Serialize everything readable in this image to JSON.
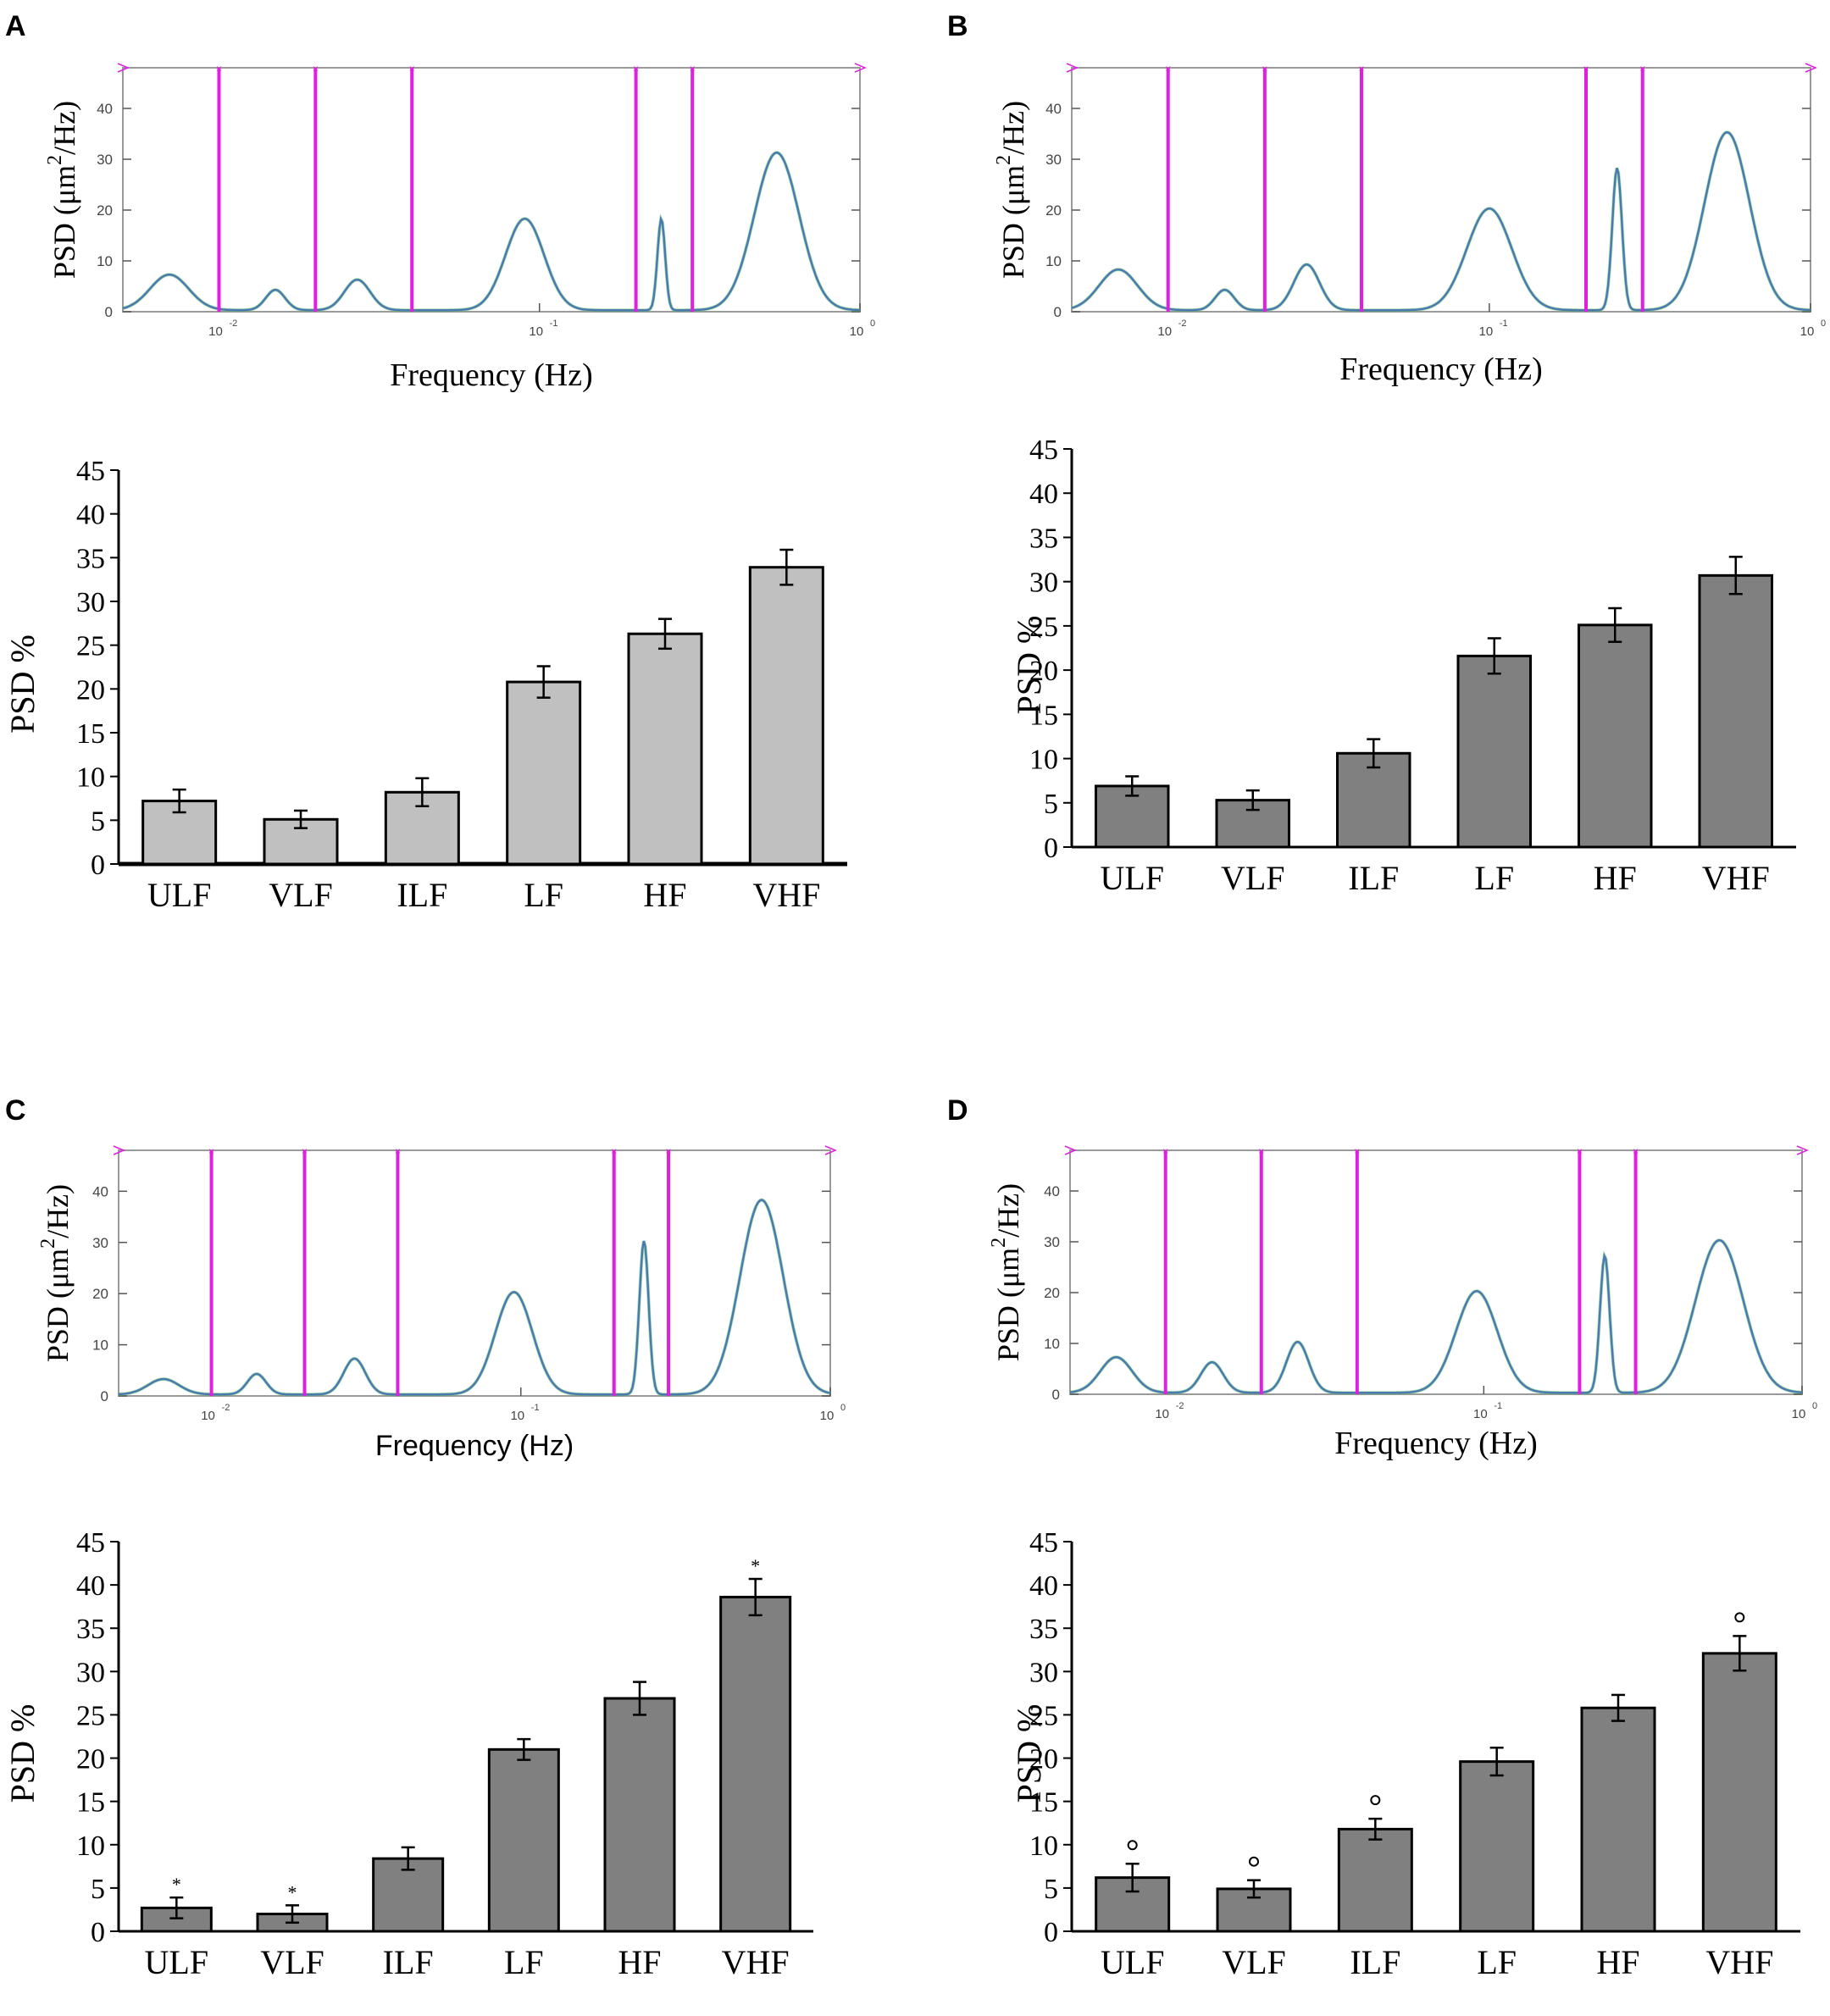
{
  "panels": [
    {
      "letter": "A",
      "spectrum": {
        "ylabel_main": "PSD (μm",
        "ylabel_sup": "2",
        "ylabel_tail": "/Hz)",
        "xlabel": "Frequency (Hz)",
        "xlabel_font": "serif",
        "xtick_labels": [
          "10",
          "10",
          "10"
        ],
        "xtick_exps": [
          "-2",
          "-1",
          "0"
        ],
        "yticks": [
          0,
          10,
          20,
          30,
          40
        ],
        "ylim": [
          0,
          48
        ],
        "xlim_log": [
          -2.3,
          0
        ],
        "band_edges_hz": [
          0.01,
          0.02,
          0.04,
          0.2,
          0.3
        ],
        "peaks": [
          {
            "f": 0.007,
            "h": 7,
            "w": 0.06
          },
          {
            "f": 0.015,
            "h": 4,
            "w": 0.03
          },
          {
            "f": 0.027,
            "h": 6,
            "w": 0.04
          },
          {
            "f": 0.09,
            "h": 18,
            "w": 0.06
          },
          {
            "f": 0.24,
            "h": 18,
            "w": 0.012
          },
          {
            "f": 0.55,
            "h": 31,
            "w": 0.07
          }
        ]
      },
      "bars": {
        "ylabel": "PSD %",
        "bar_color": "#c0c0c0",
        "annotation": "",
        "yticks": [
          0,
          5,
          10,
          15,
          20,
          25,
          30,
          35,
          40,
          45
        ],
        "ylim": [
          0,
          45
        ],
        "categories": [
          "ULF",
          "VLF",
          "ILF",
          "LF",
          "HF",
          "VHF"
        ],
        "values": [
          7.2,
          5.1,
          8.2,
          20.8,
          26.3,
          33.9
        ],
        "errors": [
          1.3,
          1.0,
          1.6,
          1.8,
          1.7,
          2.0
        ],
        "marks": [
          "",
          "",
          "",
          "",
          "",
          ""
        ]
      }
    },
    {
      "letter": "B",
      "spectrum": {
        "ylabel_main": "PSD (μm",
        "ylabel_sup": "2",
        "ylabel_tail": "/Hz)",
        "xlabel": "Frequency (Hz)",
        "xlabel_font": "serif",
        "xtick_labels": [
          "10",
          "10",
          "10"
        ],
        "xtick_exps": [
          "-2",
          "-1",
          "0"
        ],
        "yticks": [
          0,
          10,
          20,
          30,
          40
        ],
        "ylim": [
          0,
          48
        ],
        "xlim_log": [
          -2.3,
          0
        ],
        "band_edges_hz": [
          0.01,
          0.02,
          0.04,
          0.2,
          0.3
        ],
        "peaks": [
          {
            "f": 0.007,
            "h": 8,
            "w": 0.06
          },
          {
            "f": 0.015,
            "h": 4,
            "w": 0.03
          },
          {
            "f": 0.027,
            "h": 9,
            "w": 0.04
          },
          {
            "f": 0.1,
            "h": 20,
            "w": 0.07
          },
          {
            "f": 0.25,
            "h": 28,
            "w": 0.015
          },
          {
            "f": 0.55,
            "h": 35,
            "w": 0.07
          }
        ]
      },
      "bars": {
        "ylabel": "PSD %",
        "bar_color": "#808080",
        "annotation": "",
        "yticks": [
          0,
          5,
          10,
          15,
          20,
          25,
          30,
          35,
          40,
          45
        ],
        "ylim": [
          0,
          45
        ],
        "categories": [
          "ULF",
          "VLF",
          "ILF",
          "LF",
          "HF",
          "VHF"
        ],
        "values": [
          6.9,
          5.3,
          10.6,
          21.6,
          25.1,
          30.7
        ],
        "errors": [
          1.1,
          1.1,
          1.6,
          2.0,
          1.9,
          2.1
        ],
        "marks": [
          "",
          "",
          "",
          "",
          "",
          ""
        ]
      }
    },
    {
      "letter": "C",
      "spectrum": {
        "ylabel_main": "PSD (μm",
        "ylabel_sup": "2",
        "ylabel_tail": "/Hz)",
        "xlabel": "Frequency (Hz)",
        "xlabel_font": "sans",
        "xtick_labels": [
          "10",
          "10",
          "10"
        ],
        "xtick_exps": [
          "-2",
          "-1",
          "0"
        ],
        "yticks": [
          0,
          10,
          20,
          30,
          40
        ],
        "ylim": [
          0,
          48
        ],
        "xlim_log": [
          -2.3,
          0
        ],
        "band_edges_hz": [
          0.01,
          0.02,
          0.04,
          0.2,
          0.3
        ],
        "peaks": [
          {
            "f": 0.007,
            "h": 3,
            "w": 0.05
          },
          {
            "f": 0.014,
            "h": 4,
            "w": 0.03
          },
          {
            "f": 0.029,
            "h": 7,
            "w": 0.035
          },
          {
            "f": 0.095,
            "h": 20,
            "w": 0.06
          },
          {
            "f": 0.25,
            "h": 30,
            "w": 0.015
          },
          {
            "f": 0.6,
            "h": 38,
            "w": 0.07
          }
        ]
      },
      "bars": {
        "ylabel": "PSD %",
        "bar_color": "#808080",
        "annotation": "*",
        "yticks": [
          0,
          5,
          10,
          15,
          20,
          25,
          30,
          35,
          40,
          45
        ],
        "ylim": [
          0,
          45
        ],
        "categories": [
          "ULF",
          "VLF",
          "ILF",
          "LF",
          "HF",
          "VHF"
        ],
        "values": [
          2.7,
          2.0,
          8.4,
          21.0,
          26.9,
          38.6
        ],
        "errors": [
          1.2,
          1.0,
          1.3,
          1.2,
          1.9,
          2.1
        ],
        "marks": [
          "*",
          "*",
          "",
          "",
          "",
          "*"
        ]
      }
    },
    {
      "letter": "D",
      "spectrum": {
        "ylabel_main": "PSD (μm",
        "ylabel_sup": "2",
        "ylabel_tail": "/Hz)",
        "xlabel": "Frequency (Hz)",
        "xlabel_font": "serif",
        "xtick_labels": [
          "10",
          "10",
          "10"
        ],
        "xtick_exps": [
          "-2",
          "-1",
          "0"
        ],
        "yticks": [
          0,
          10,
          20,
          30,
          40
        ],
        "ylim": [
          0,
          48
        ],
        "xlim_log": [
          -2.3,
          0
        ],
        "band_edges_hz": [
          0.01,
          0.02,
          0.04,
          0.2,
          0.3
        ],
        "peaks": [
          {
            "f": 0.007,
            "h": 7,
            "w": 0.05
          },
          {
            "f": 0.014,
            "h": 6,
            "w": 0.035
          },
          {
            "f": 0.026,
            "h": 10,
            "w": 0.035
          },
          {
            "f": 0.095,
            "h": 20,
            "w": 0.065
          },
          {
            "f": 0.24,
            "h": 27,
            "w": 0.015
          },
          {
            "f": 0.55,
            "h": 30,
            "w": 0.075
          }
        ]
      },
      "bars": {
        "ylabel": "PSD %",
        "bar_color": "#808080",
        "annotation": "°",
        "yticks": [
          0,
          5,
          10,
          15,
          20,
          25,
          30,
          35,
          40,
          45
        ],
        "ylim": [
          0,
          45
        ],
        "categories": [
          "ULF",
          "VLF",
          "ILF",
          "LF",
          "HF",
          "VHF"
        ],
        "values": [
          6.2,
          4.9,
          11.8,
          19.6,
          25.8,
          32.1
        ],
        "errors": [
          1.6,
          1.0,
          1.2,
          1.6,
          1.5,
          2.0
        ],
        "marks": [
          "o",
          "o",
          "o",
          "",
          "",
          "o"
        ]
      }
    }
  ],
  "chart_data": [
    {
      "panel": "A",
      "type": "line",
      "title": "",
      "xlabel": "Frequency (Hz)",
      "ylabel": "PSD (μm2/Hz)",
      "ylim": [
        0,
        48
      ],
      "x_scale": "log",
      "xlim": [
        0.005,
        1
      ]
    },
    {
      "panel": "A",
      "type": "bar",
      "categories": [
        "ULF",
        "VLF",
        "ILF",
        "LF",
        "HF",
        "VHF"
      ],
      "values": [
        7.2,
        5.1,
        8.2,
        20.8,
        26.3,
        33.9
      ],
      "errors": [
        1.3,
        1.0,
        1.6,
        1.8,
        1.7,
        2.0
      ],
      "ylabel": "PSD %",
      "ylim": [
        0,
        45
      ]
    },
    {
      "panel": "B",
      "type": "line",
      "title": "",
      "xlabel": "Frequency (Hz)",
      "ylabel": "PSD (μm2/Hz)",
      "ylim": [
        0,
        48
      ],
      "x_scale": "log",
      "xlim": [
        0.005,
        1
      ]
    },
    {
      "panel": "B",
      "type": "bar",
      "categories": [
        "ULF",
        "VLF",
        "ILF",
        "LF",
        "HF",
        "VHF"
      ],
      "values": [
        6.9,
        5.3,
        10.6,
        21.6,
        25.1,
        30.7
      ],
      "errors": [
        1.1,
        1.1,
        1.6,
        2.0,
        1.9,
        2.1
      ],
      "ylabel": "PSD %",
      "ylim": [
        0,
        45
      ]
    },
    {
      "panel": "C",
      "type": "line",
      "title": "",
      "xlabel": "Frequency (Hz)",
      "ylabel": "PSD (μm2/Hz)",
      "ylim": [
        0,
        48
      ],
      "x_scale": "log",
      "xlim": [
        0.005,
        1
      ]
    },
    {
      "panel": "C",
      "type": "bar",
      "categories": [
        "ULF",
        "VLF",
        "ILF",
        "LF",
        "HF",
        "VHF"
      ],
      "values": [
        2.7,
        2.0,
        8.4,
        21.0,
        26.9,
        38.6
      ],
      "errors": [
        1.2,
        1.0,
        1.3,
        1.2,
        1.9,
        2.1
      ],
      "ylabel": "PSD %",
      "ylim": [
        0,
        45
      ]
    },
    {
      "panel": "D",
      "type": "line",
      "title": "",
      "xlabel": "Frequency (Hz)",
      "ylabel": "PSD (μm2/Hz)",
      "ylim": [
        0,
        48
      ],
      "x_scale": "log",
      "xlim": [
        0.005,
        1
      ]
    },
    {
      "panel": "D",
      "type": "bar",
      "categories": [
        "ULF",
        "VLF",
        "ILF",
        "LF",
        "HF",
        "VHF"
      ],
      "values": [
        6.2,
        4.9,
        11.8,
        19.6,
        25.8,
        32.1
      ],
      "errors": [
        1.6,
        1.0,
        1.2,
        1.6,
        1.5,
        2.0
      ],
      "ylabel": "PSD %",
      "ylim": [
        0,
        45
      ]
    }
  ],
  "colors": {
    "band_line": "#e020e0",
    "trace": "#4a7ab0",
    "trace_noise": "#4cc04c",
    "frame": "#9a9a9a"
  }
}
